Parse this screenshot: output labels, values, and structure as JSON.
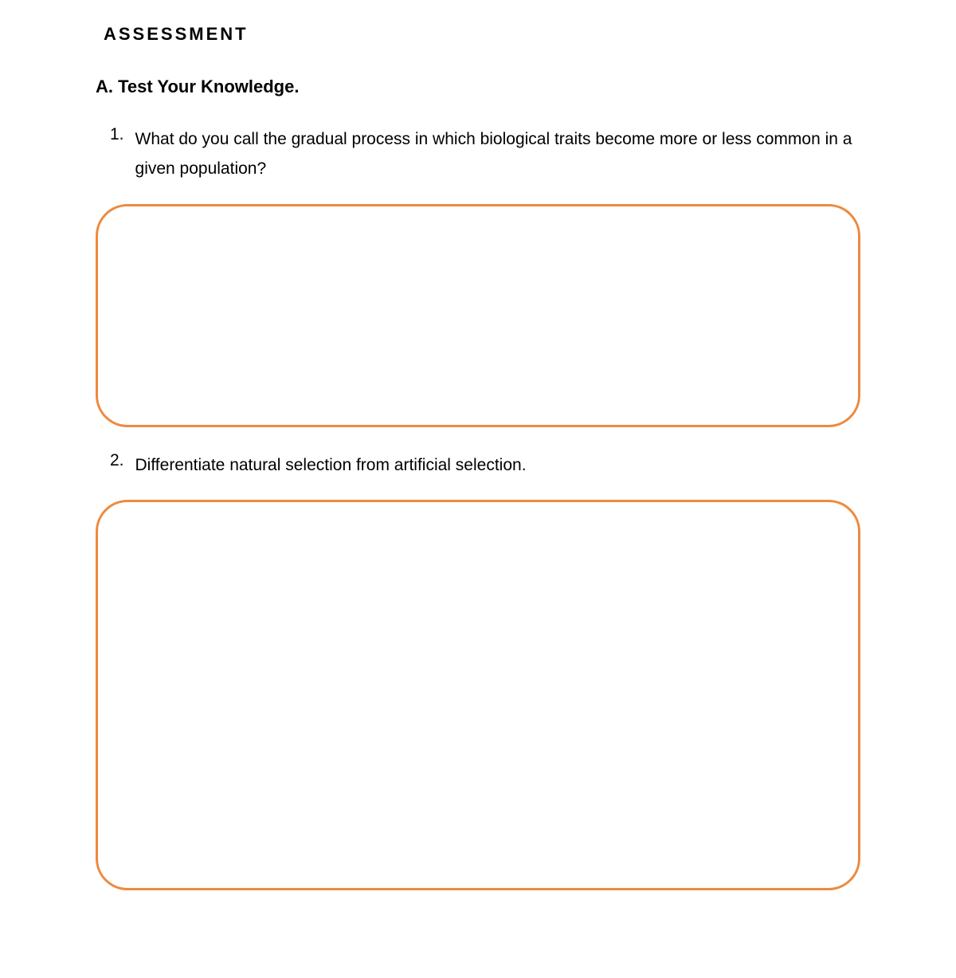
{
  "document": {
    "title": "ASSESSMENT",
    "section_heading": "A. Test Your Knowledge.",
    "questions": [
      {
        "number": "1.",
        "text": "What do you call the gradual process in which biological traits become more or less common in a given population?"
      },
      {
        "number": "2.",
        "text": "Differentiate natural selection from artificial selection."
      }
    ],
    "styling": {
      "page_background": "#ffffff",
      "text_color": "#000000",
      "box_border_color": "#ed8a3f",
      "box_border_width": 3,
      "box_border_radius": 40,
      "title_fontsize": 22,
      "title_letter_spacing": 3,
      "section_fontsize": 22,
      "question_fontsize": 21,
      "question_line_height": 1.75,
      "answer_box_heights": [
        280,
        490
      ]
    }
  }
}
